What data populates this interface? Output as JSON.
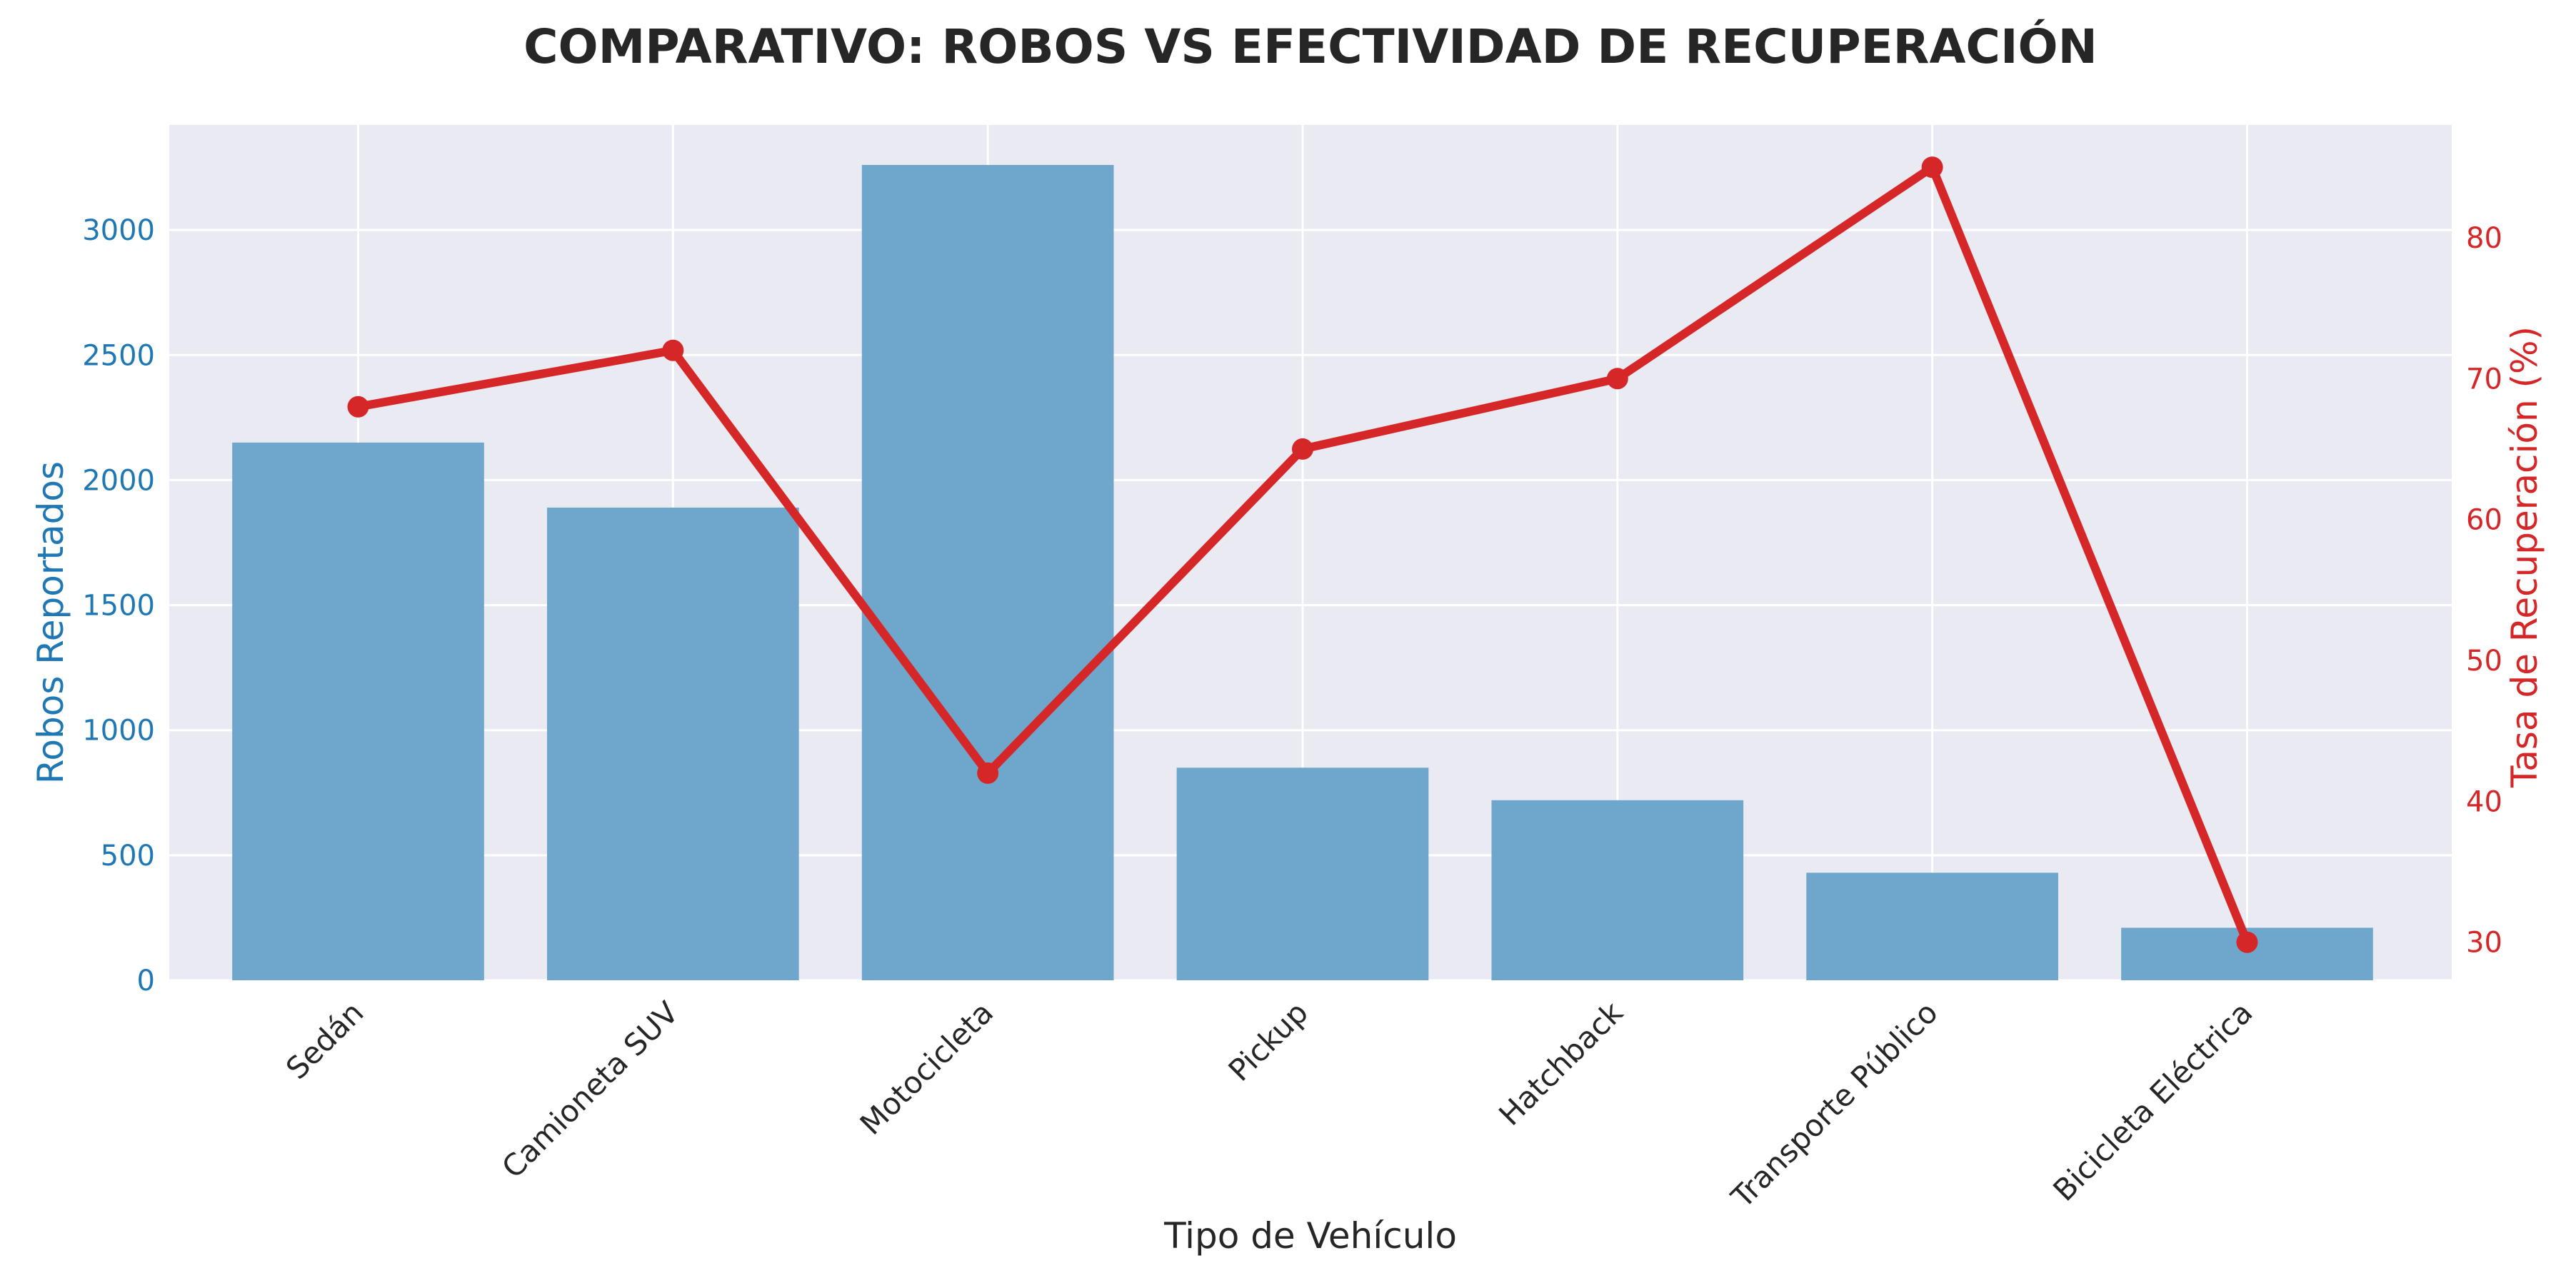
{
  "chart_data": {
    "type": "bar+line",
    "title": "COMPARATIVO: ROBOS VS EFECTIVIDAD DE RECUPERACIÓN",
    "xlabel": "Tipo de Vehículo",
    "ylabel_left": "Robos Reportados",
    "ylabel_right": "Tasa de Recuperación (%)",
    "categories": [
      "Sedán",
      "Camioneta SUV",
      "Motocicleta",
      "Pickup",
      "Hatchback",
      "Transporte Público",
      "Bicicleta Eléctrica"
    ],
    "series": [
      {
        "type": "bar",
        "axis": "left",
        "values": [
          2150,
          1890,
          3260,
          850,
          720,
          430,
          210
        ]
      },
      {
        "type": "line",
        "axis": "right",
        "values": [
          68,
          72,
          42,
          65,
          70,
          85,
          30
        ]
      }
    ],
    "ylim_left": [
      0,
      3420
    ],
    "ylim_right": [
      27.3,
      88.0
    ],
    "yticks_left": [
      "0",
      "500",
      "1000",
      "1500",
      "2000",
      "2500",
      "3000"
    ],
    "yticks_right": [
      "30",
      "40",
      "50",
      "60",
      "70",
      "80"
    ],
    "grid": true,
    "colors": {
      "bar": "#6fa6cc",
      "line": "#d62728",
      "left_axis": "#1f77b4",
      "right_axis": "#d62728",
      "plot_bg": "#eaeaf2",
      "grid": "#ffffff",
      "text": "#262626"
    }
  }
}
